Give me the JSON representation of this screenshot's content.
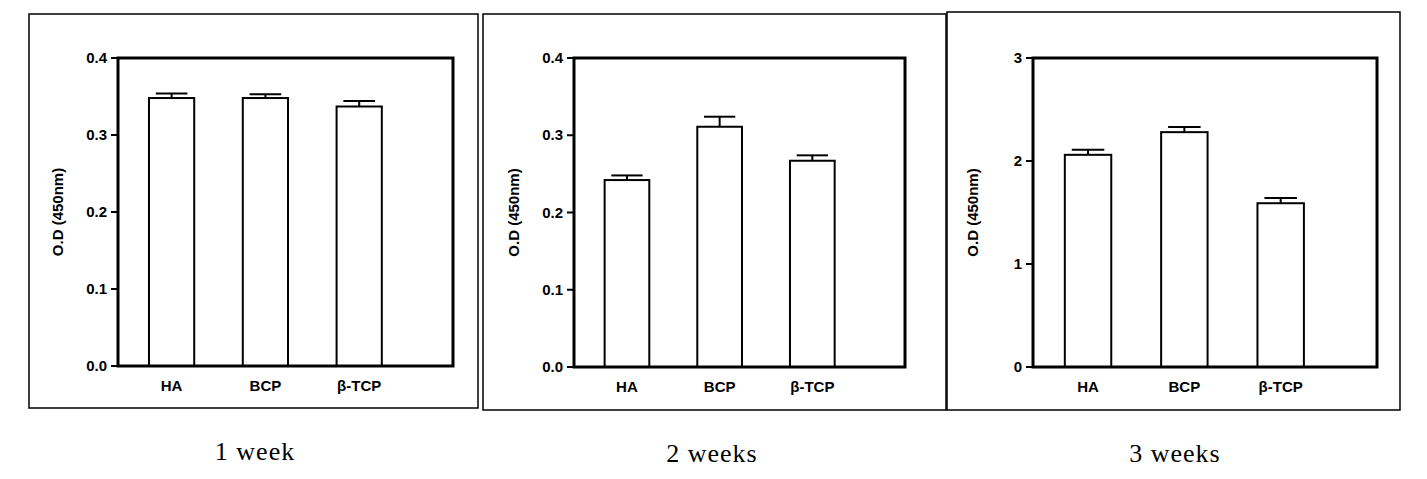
{
  "chart_data": [
    {
      "type": "bar",
      "title": "1 week",
      "y_label": "O.D (450nm)",
      "categories": [
        "HA",
        "BCP",
        "β-TCP"
      ],
      "values": [
        0.348,
        0.348,
        0.337
      ],
      "errors": [
        0.006,
        0.005,
        0.007
      ],
      "color": "#ffffff",
      "ylim": [
        0,
        0.4
      ],
      "yticks": [
        {
          "value": 0,
          "label": "0.0"
        },
        0.1,
        0.2,
        0.3,
        0.4
      ],
      "grid": false
    },
    {
      "type": "bar",
      "title": "2 weeks",
      "y_label": "O.D (450nm)",
      "categories": [
        "HA",
        "BCP",
        "β-TCP"
      ],
      "values": [
        0.242,
        0.311,
        0.267
      ],
      "errors": [
        0.006,
        0.013,
        0.007
      ],
      "color": "#ffffff",
      "ylim": [
        0,
        0.4
      ],
      "yticks": [
        {
          "value": 0,
          "label": "0.0"
        },
        0.1,
        0.2,
        0.3,
        0.4
      ],
      "grid": false
    },
    {
      "type": "bar",
      "title": "3 weeks",
      "y_label": "O.D (450nm)",
      "categories": [
        "HA",
        "BCP",
        "β-TCP"
      ],
      "values": [
        2.06,
        2.28,
        1.59
      ],
      "errors": [
        0.05,
        0.05,
        0.05
      ],
      "color": "#ffffff",
      "ylim": [
        0,
        3
      ],
      "yticks": [
        0,
        1,
        2,
        3
      ],
      "grid": false
    }
  ]
}
